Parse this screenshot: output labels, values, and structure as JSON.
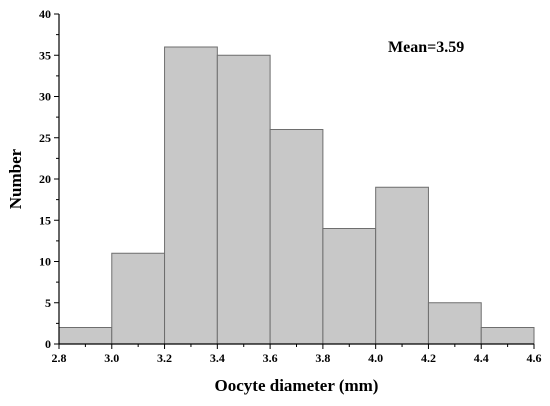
{
  "chart_data": {
    "type": "bar",
    "subtype": "histogram",
    "bins": [
      {
        "start": 2.8,
        "end": 3.0,
        "value": 2
      },
      {
        "start": 3.0,
        "end": 3.2,
        "value": 11
      },
      {
        "start": 3.2,
        "end": 3.4,
        "value": 36
      },
      {
        "start": 3.4,
        "end": 3.6,
        "value": 35
      },
      {
        "start": 3.6,
        "end": 3.8,
        "value": 26
      },
      {
        "start": 3.8,
        "end": 4.0,
        "value": 14
      },
      {
        "start": 4.0,
        "end": 4.2,
        "value": 19
      },
      {
        "start": 4.2,
        "end": 4.4,
        "value": 5
      },
      {
        "start": 4.4,
        "end": 4.6,
        "value": 2
      }
    ],
    "xlabel": "Oocyte diameter (mm)",
    "ylabel": "Number",
    "xlim": [
      2.8,
      4.6
    ],
    "ylim": [
      0,
      40
    ],
    "xticks": [
      "2.8",
      "3.0",
      "3.2",
      "3.4",
      "3.6",
      "3.8",
      "4.0",
      "4.2",
      "4.4",
      "4.6"
    ],
    "yticks": [
      "0",
      "5",
      "10",
      "15",
      "20",
      "25",
      "30",
      "35",
      "40"
    ],
    "annotation": "Mean=3.59",
    "annotation_placement": "top-right",
    "grid": false,
    "colors": {
      "bar_fill": "#c8c8c8",
      "bar_edge": "#6e6e6e",
      "axis": "#000000"
    }
  }
}
